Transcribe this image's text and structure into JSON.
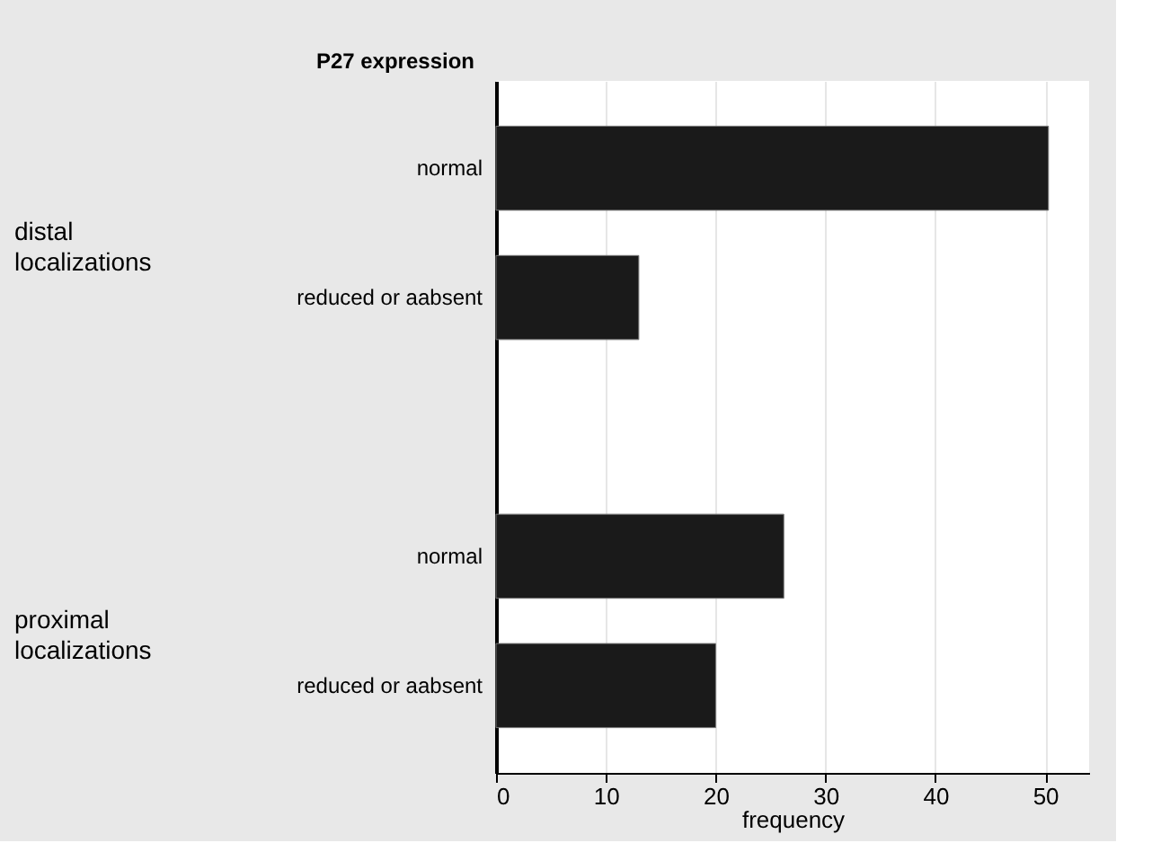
{
  "chart_data": {
    "type": "bar",
    "orientation": "horizontal",
    "ylabel": "P27 expression",
    "xlabel": "frequency",
    "annotations": [
      "distal localizations",
      "proximal localizations"
    ],
    "categories": [
      "normal",
      "reduced or aabsent",
      null,
      "normal",
      "reduced or aabsent"
    ],
    "values": [
      50.3,
      13.0,
      null,
      26.2,
      20.0
    ],
    "color": "#1a1a1a",
    "xlim": [
      0,
      54
    ],
    "xticks": [
      0,
      10,
      20,
      30,
      40,
      50
    ],
    "grid": "x"
  }
}
